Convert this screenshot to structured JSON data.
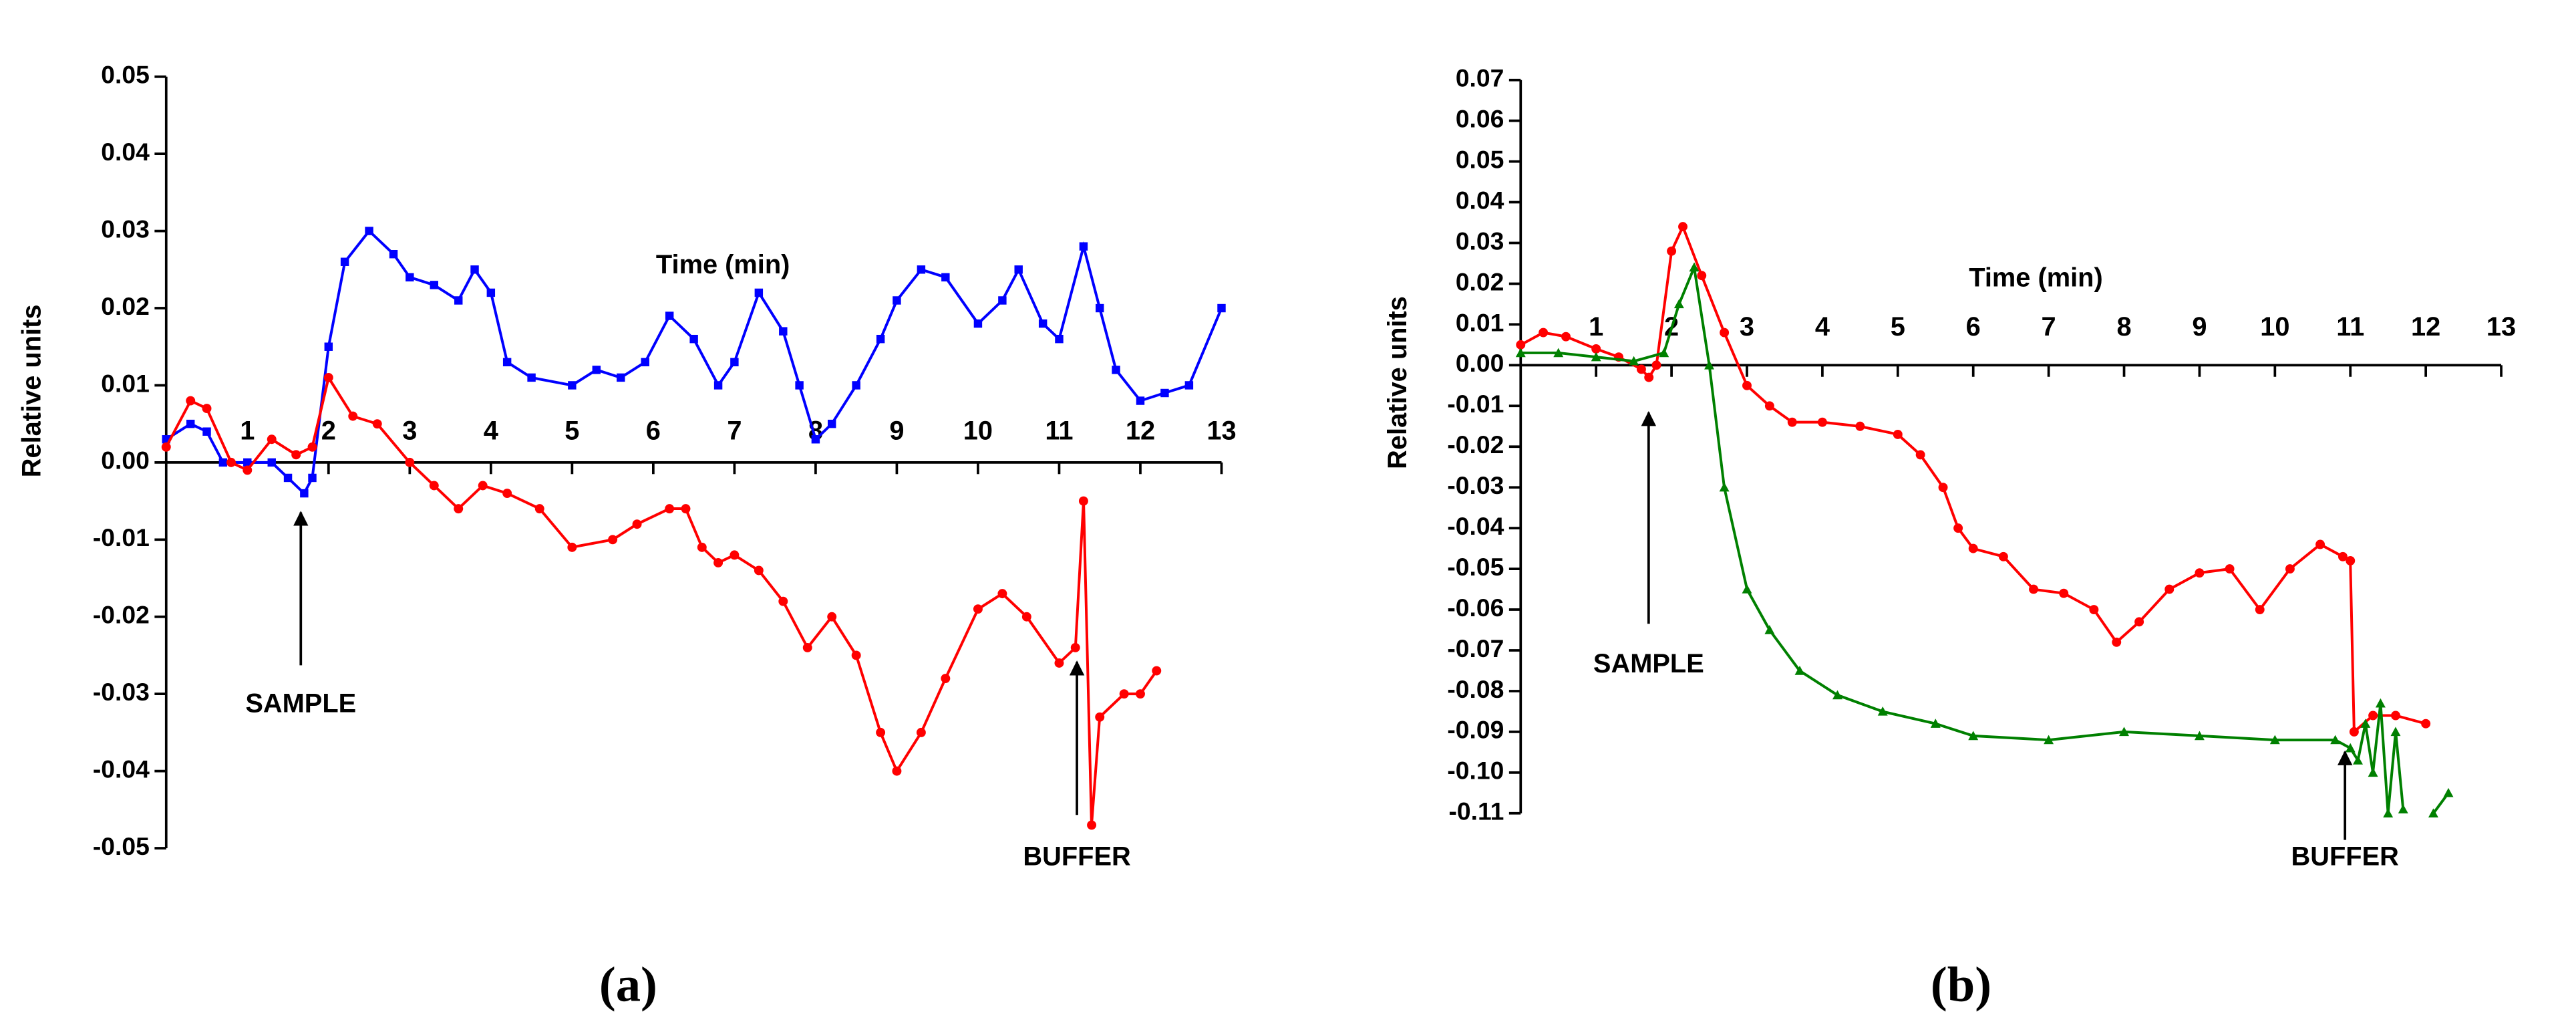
{
  "chart_data": [
    {
      "type": "line",
      "label": "(a)",
      "x_label": "Time (min)",
      "y_label": "Relative units",
      "annotations": [
        "SAMPLE",
        "BUFFER"
      ],
      "xlim": [
        0,
        13
      ],
      "xticks": [
        1,
        2,
        3,
        4,
        5,
        6,
        7,
        8,
        9,
        10,
        11,
        12,
        13
      ],
      "ylim": [
        -0.05,
        0.05
      ],
      "yticks": [
        0.05,
        0.04,
        0.03,
        0.02,
        0.01,
        {
          "value": 0,
          "label": "0.00"
        },
        -0.01,
        -0.02,
        -0.03,
        -0.04,
        -0.05
      ],
      "series": [
        {
          "color": "#0000ff",
          "marker": "square",
          "x": [
            0,
            0.3,
            0.5,
            0.7,
            1,
            1.3,
            1.5,
            1.7,
            1.8,
            2,
            2.2,
            2.5,
            2.8,
            3,
            3.3,
            3.6,
            3.8,
            4,
            4.2,
            4.5,
            5,
            5.3,
            5.6,
            5.9,
            6.2,
            6.5,
            6.8,
            7,
            7.3,
            7.6,
            7.8,
            8,
            8.2,
            8.5,
            8.8,
            9,
            9.3,
            9.6,
            10,
            10.3,
            10.5,
            10.8,
            11,
            11.3,
            11.5,
            11.7,
            12,
            12.3,
            12.6,
            13
          ],
          "values": [
            0.003,
            0.005,
            0.004,
            0.0,
            0.0,
            0.0,
            -0.002,
            -0.004,
            -0.002,
            0.015,
            0.026,
            0.03,
            0.027,
            0.024,
            0.023,
            0.021,
            0.025,
            0.022,
            0.013,
            0.011,
            0.01,
            0.012,
            0.011,
            0.013,
            0.019,
            0.016,
            0.01,
            0.013,
            0.022,
            0.017,
            0.01,
            0.003,
            0.005,
            0.01,
            0.016,
            0.021,
            0.025,
            0.024,
            0.018,
            0.021,
            0.025,
            0.018,
            0.016,
            0.028,
            0.02,
            0.012,
            0.008,
            0.009,
            0.01,
            0.02
          ]
        },
        {
          "color": "#ff0000",
          "marker": "circle",
          "x": [
            0,
            0.3,
            0.5,
            0.8,
            1,
            1.3,
            1.6,
            1.8,
            2,
            2.3,
            2.6,
            3,
            3.3,
            3.6,
            3.9,
            4.2,
            4.6,
            5,
            5.5,
            5.8,
            6.2,
            6.4,
            6.6,
            6.8,
            7,
            7.3,
            7.6,
            7.9,
            8.2,
            8.5,
            8.8,
            9,
            9.3,
            9.6,
            10,
            10.3,
            10.6,
            11,
            11.2,
            11.3,
            11.4,
            11.5,
            11.8,
            12,
            12.2
          ],
          "values": [
            0.002,
            0.008,
            0.007,
            0.0,
            -0.001,
            0.003,
            0.001,
            0.002,
            0.011,
            0.006,
            0.005,
            0.0,
            -0.003,
            -0.006,
            -0.003,
            -0.004,
            -0.006,
            -0.011,
            -0.01,
            -0.008,
            -0.006,
            -0.006,
            -0.011,
            -0.013,
            -0.012,
            -0.014,
            -0.018,
            -0.024,
            -0.02,
            -0.025,
            -0.035,
            -0.04,
            -0.035,
            -0.028,
            -0.019,
            -0.017,
            -0.02,
            -0.026,
            -0.024,
            -0.005,
            -0.047,
            -0.033,
            -0.03,
            -0.03,
            -0.027
          ]
        }
      ]
    },
    {
      "type": "line",
      "label": "(b)",
      "x_label": "Time (min)",
      "y_label": "Relative units",
      "annotations": [
        "SAMPLE",
        "BUFFER"
      ],
      "xlim": [
        0,
        13
      ],
      "xticks": [
        1,
        2,
        3,
        4,
        5,
        6,
        7,
        8,
        9,
        10,
        11,
        12,
        13
      ],
      "ylim": [
        -0.11,
        0.07
      ],
      "yticks": [
        0.07,
        0.06,
        0.05,
        0.04,
        0.03,
        0.02,
        0.01,
        {
          "value": 0,
          "label": "0.00"
        },
        -0.01,
        -0.02,
        -0.03,
        -0.04,
        -0.05,
        -0.06,
        -0.07,
        -0.08,
        -0.09,
        {
          "value": -0.1,
          "label": "-0.10"
        },
        -0.11
      ],
      "series": [
        {
          "color": "#ff0000",
          "marker": "circle",
          "x": [
            0,
            0.3,
            0.6,
            1,
            1.3,
            1.6,
            1.7,
            1.8,
            2,
            2.15,
            2.4,
            2.7,
            3,
            3.3,
            3.6,
            4,
            4.5,
            5,
            5.3,
            5.6,
            5.8,
            6,
            6.4,
            6.8,
            7.2,
            7.6,
            7.9,
            8.2,
            8.6,
            9,
            9.4,
            9.8,
            10.2,
            10.6,
            10.9,
            11,
            11.05,
            11.3,
            11.6,
            12
          ],
          "values": [
            0.005,
            0.008,
            0.007,
            0.004,
            0.002,
            -0.001,
            -0.003,
            0.0,
            0.028,
            0.034,
            0.022,
            0.008,
            -0.005,
            -0.01,
            -0.014,
            -0.014,
            -0.015,
            -0.017,
            -0.022,
            -0.03,
            -0.04,
            -0.045,
            -0.047,
            -0.055,
            -0.056,
            -0.06,
            -0.068,
            -0.063,
            -0.055,
            -0.051,
            -0.05,
            -0.06,
            -0.05,
            -0.044,
            -0.047,
            -0.048,
            -0.09,
            -0.086,
            -0.086,
            -0.088
          ]
        },
        {
          "color": "#008000",
          "marker": "triangle",
          "x": [
            0,
            0.5,
            1,
            1.5,
            1.9,
            2.1,
            2.3,
            2.5,
            2.7,
            3,
            3.3,
            3.7,
            4.2,
            4.8,
            5.5,
            6,
            7,
            8,
            9,
            10,
            10.8,
            11,
            11.1,
            11.2,
            11.3,
            11.4,
            11.5,
            11.6,
            11.7,
            11.9,
            12.1,
            12.3
          ],
          "values": [
            0.003,
            0.003,
            0.002,
            0.001,
            0.003,
            0.015,
            0.024,
            0.0,
            -0.03,
            -0.055,
            -0.065,
            -0.075,
            -0.081,
            -0.085,
            -0.088,
            -0.091,
            -0.092,
            -0.09,
            -0.091,
            -0.092,
            -0.092,
            -0.094,
            -0.097,
            -0.088,
            -0.1,
            -0.083,
            -0.11,
            -0.09,
            -0.109,
            null,
            -0.11,
            -0.105
          ]
        }
      ]
    }
  ]
}
